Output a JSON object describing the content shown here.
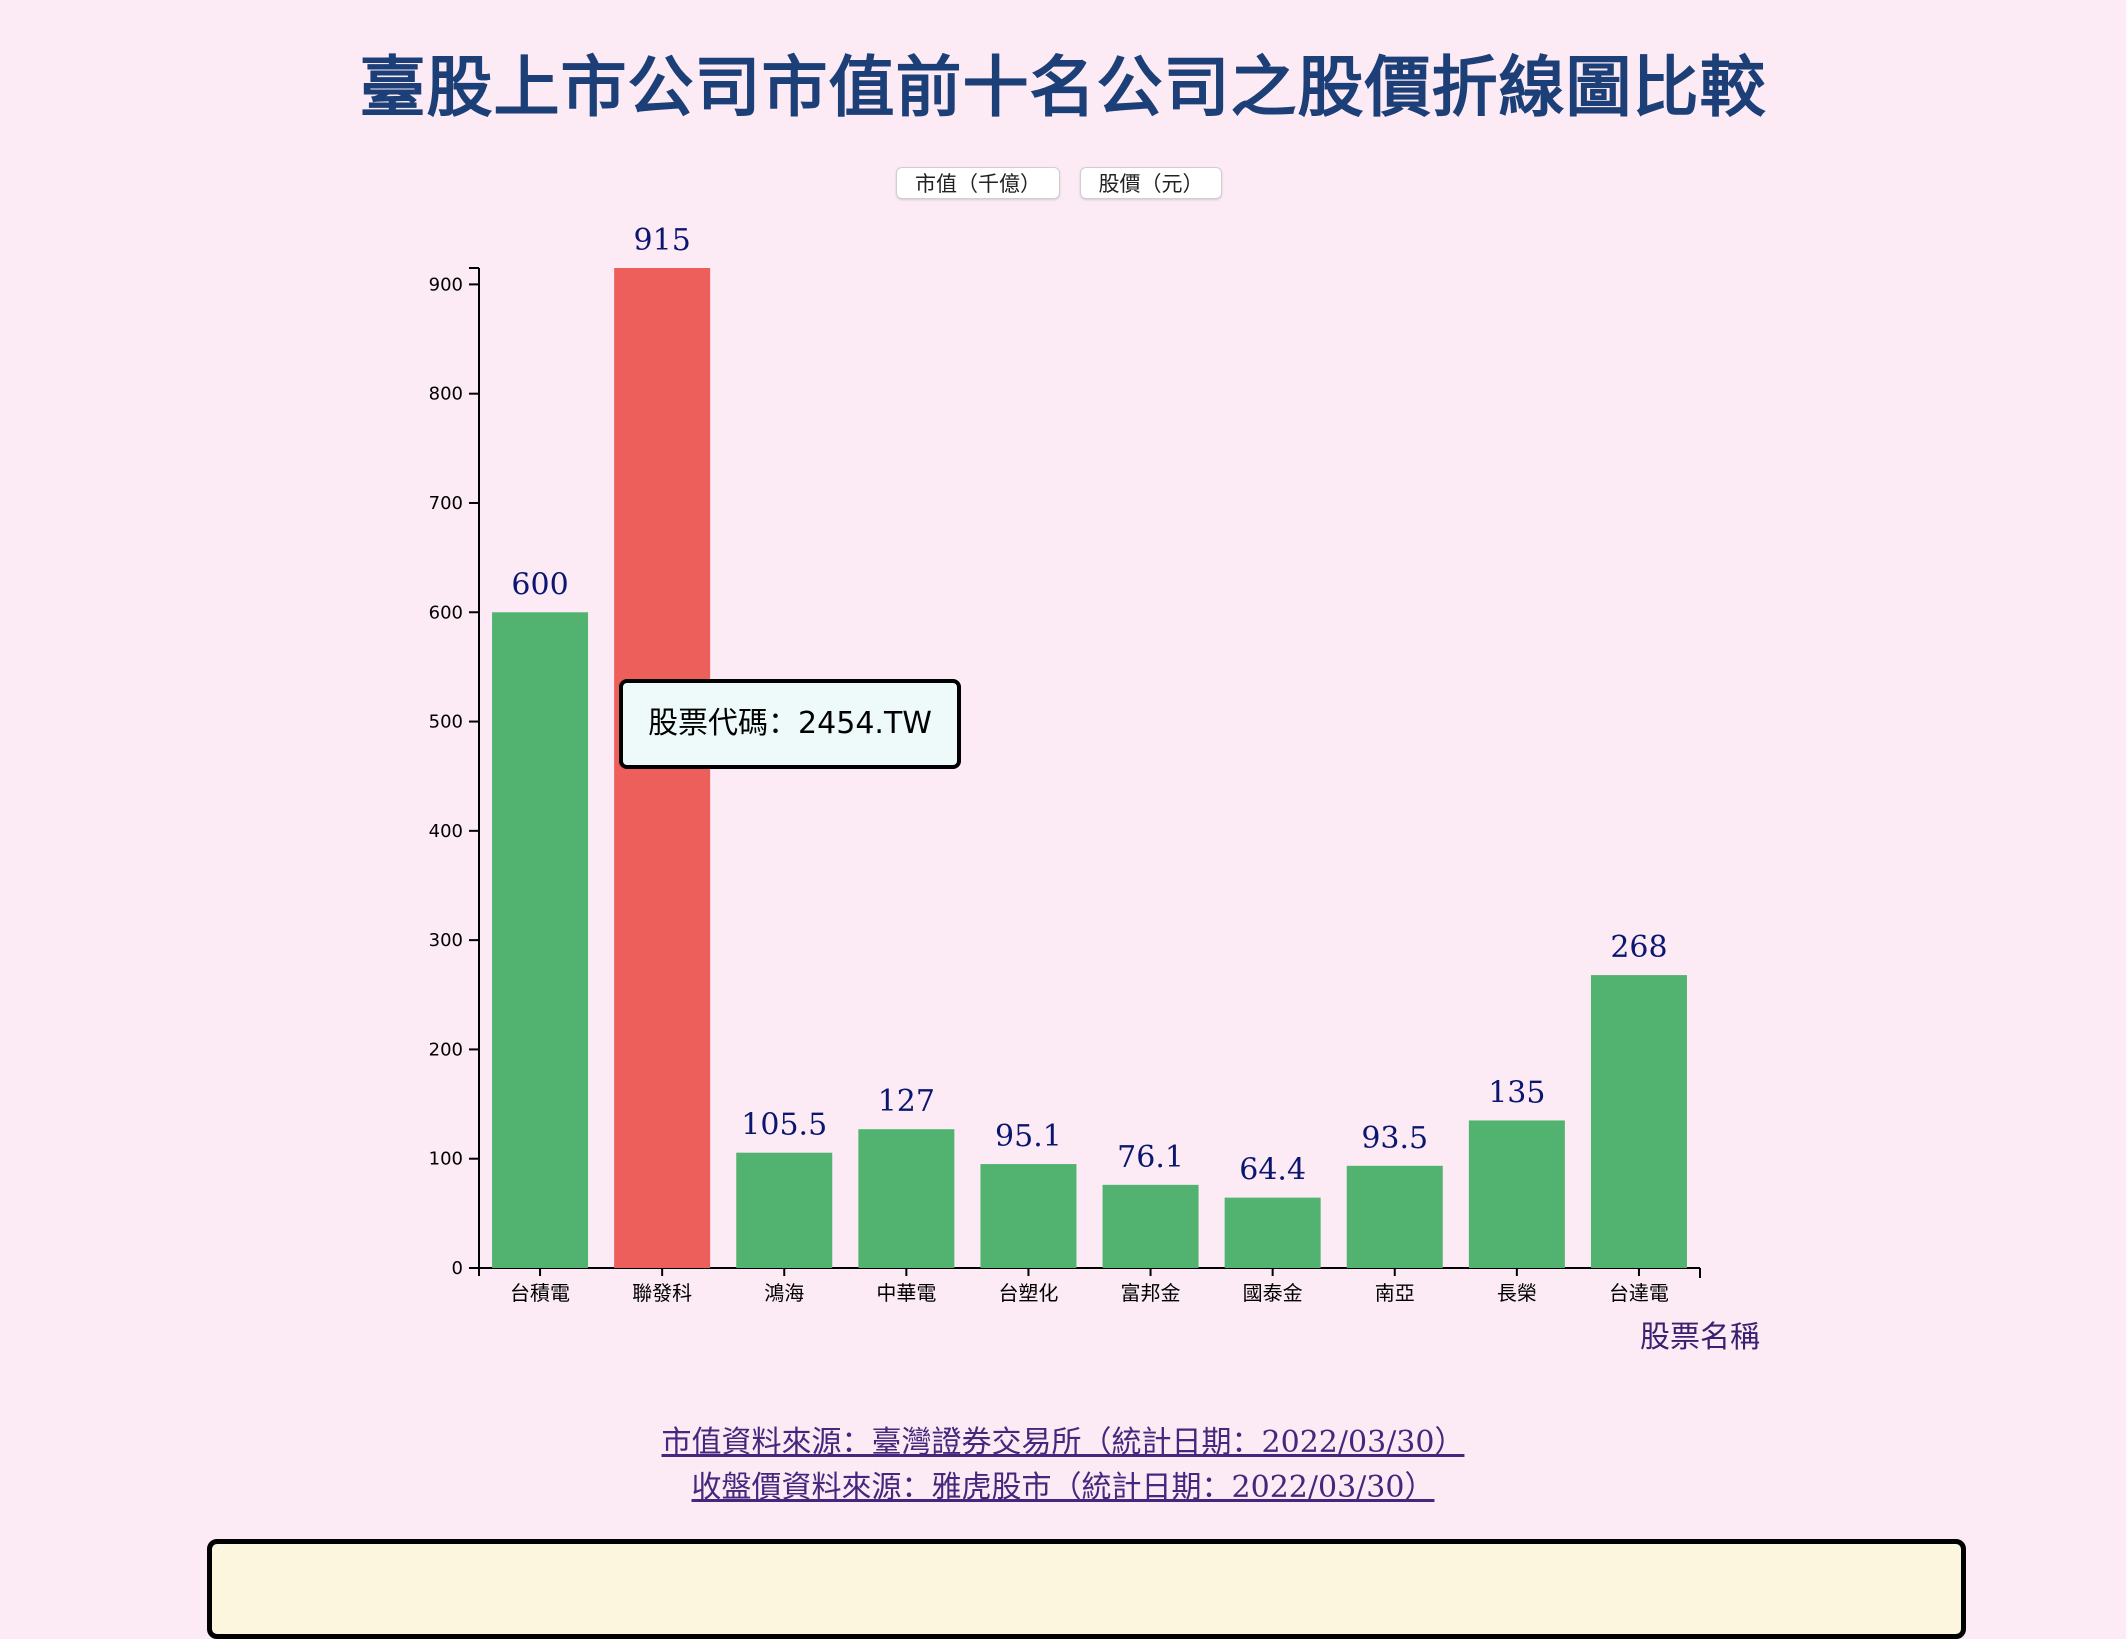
{
  "page": {
    "title": "臺股上市公司市值前十名公司之股價折線圖比較"
  },
  "toggles": {
    "market_cap": "市值（千億）",
    "price": "股價（元）"
  },
  "tooltip": {
    "text": "股票代碼：2454.TW"
  },
  "sources": {
    "market_cap": "市值資料來源：臺灣證券交易所（統計日期：2022/03/30）",
    "price": "收盤價資料來源：雅虎股市（統計日期：2022/03/30）"
  },
  "colors": {
    "bar": "#52b26f",
    "bar_highlight": "#ec5f5a",
    "value_label": "#0b1670",
    "title": "#1d3f78",
    "background": "#fcebf4"
  },
  "chart_data": {
    "type": "bar",
    "title": "",
    "xlabel": "股票名稱",
    "ylabel": "",
    "ylim": [
      0,
      915
    ],
    "yticks": [
      0,
      100,
      200,
      300,
      400,
      500,
      600,
      700,
      800,
      900
    ],
    "categories": [
      "台積電",
      "聯發科",
      "鴻海",
      "中華電",
      "台塑化",
      "富邦金",
      "國泰金",
      "南亞",
      "長榮",
      "台達電"
    ],
    "values": [
      600,
      915,
      105.5,
      127,
      95.1,
      76.1,
      64.4,
      93.5,
      135,
      268
    ],
    "value_labels": [
      "600",
      "915",
      "105.5",
      "127",
      "95.1",
      "76.1",
      "64.4",
      "93.5",
      "135",
      "268"
    ],
    "highlighted": "聯發科",
    "grid": false
  }
}
